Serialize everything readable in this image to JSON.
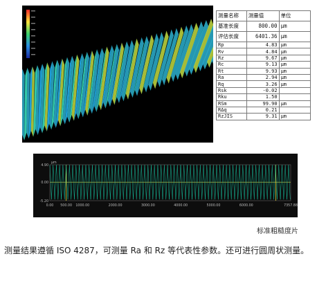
{
  "measurements": {
    "header": {
      "name": "测量名称",
      "value": "测量值",
      "unit": "单位"
    },
    "rows": [
      {
        "name": "基准长度",
        "value": "800.00",
        "unit": "μm"
      },
      {
        "name": "评估长度",
        "value": "6401.36",
        "unit": "μm"
      },
      {
        "name": "Rp",
        "value": "4.83",
        "unit": "μm"
      },
      {
        "name": "Rv",
        "value": "4.84",
        "unit": "μm"
      },
      {
        "name": "Rz",
        "value": "9.67",
        "unit": "μm"
      },
      {
        "name": "Rc",
        "value": "9.13",
        "unit": "μm"
      },
      {
        "name": "Rt",
        "value": "9.93",
        "unit": "μm"
      },
      {
        "name": "Ra",
        "value": "2.94",
        "unit": "μm"
      },
      {
        "name": "Rq",
        "value": "3.26",
        "unit": "μm"
      },
      {
        "name": "Rsk",
        "value": "-0.02",
        "unit": ""
      },
      {
        "name": "Rku",
        "value": "1.50",
        "unit": ""
      },
      {
        "name": "RSm",
        "value": "99.90",
        "unit": "μm"
      },
      {
        "name": "RΔq",
        "value": "0.21",
        "unit": ""
      },
      {
        "name": "RzJIS",
        "value": "9.31",
        "unit": "μm"
      }
    ]
  },
  "chart_data": {
    "type": "line",
    "title": "",
    "xlabel": "",
    "ylabel": "μm",
    "xlim": [
      0,
      7357.88
    ],
    "ylim": [
      -5.2,
      4.9
    ],
    "x_ticks": [
      0,
      500,
      1000,
      2000,
      3000,
      4000,
      5000,
      6000,
      7357.88
    ],
    "x_tick_labels": [
      "0.00",
      "500.00",
      "1000.00",
      "2000.00",
      "3000.00",
      "4000.00",
      "5000.00",
      "6000.00",
      "7357.88"
    ],
    "y_ticks": [
      4.9,
      0,
      -5.2
    ],
    "y_tick_labels": [
      "4.90",
      "0.00",
      "-5.20"
    ],
    "grid": true,
    "series": [
      {
        "period": 99.9,
        "amplitude": 4.84,
        "color": "#17c2a0"
      }
    ],
    "eval_start": 500,
    "eval_end": 6900
  },
  "caption": "标准粗糙度片",
  "description": "测量结果遵循 ISO 4287，可测量 Ra 和 Rz 等代表性参数。还可进行圆周状测量。"
}
